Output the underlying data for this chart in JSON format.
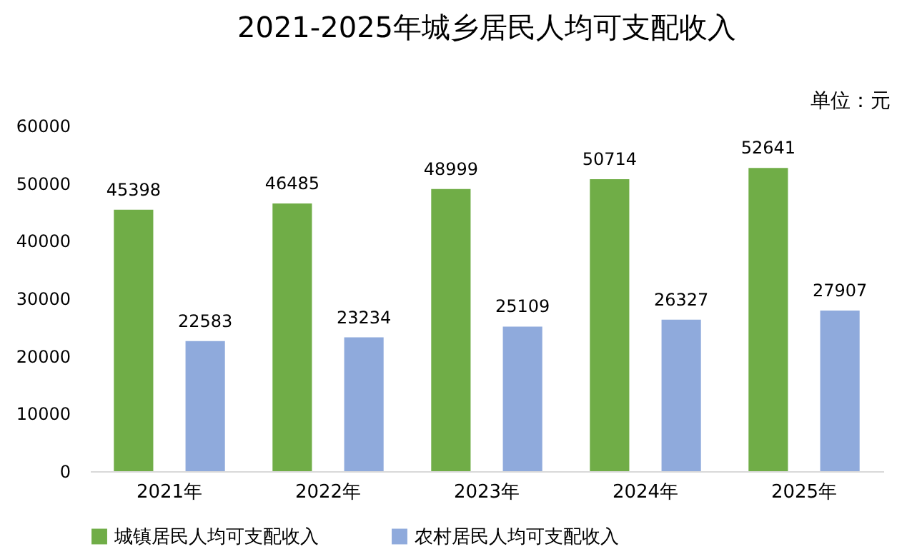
{
  "chart_data": {
    "type": "bar",
    "title": "2021-2025年城乡居民人均可支配收入",
    "annotations": [
      "单位：元"
    ],
    "categories": [
      "2021年",
      "2022年",
      "2023年",
      "2024年",
      "2025年"
    ],
    "series": [
      {
        "name": "城镇居民人均可支配收入",
        "color": "#70ad47",
        "values": [
          45398,
          46485,
          48999,
          50714,
          52641
        ]
      },
      {
        "name": "农村居民人均可支配收入",
        "color": "#8faadc",
        "values": [
          22583,
          23234,
          25109,
          26327,
          27907
        ]
      }
    ],
    "ylim": [
      0,
      60000
    ],
    "yticks": [
      0,
      10000,
      20000,
      30000,
      40000,
      50000,
      60000
    ],
    "grid": false,
    "legend": "bottom",
    "data_labels": true
  }
}
